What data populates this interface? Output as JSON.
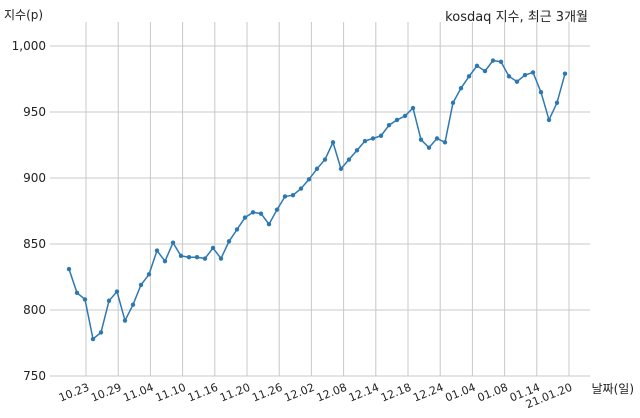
{
  "chart_data": {
    "type": "line",
    "title": "kosdaq 지수, 최근 3개월",
    "xlabel": "날짜(일)",
    "ylabel": "지수(p)",
    "y_ticks": [
      "750",
      "800",
      "850",
      "900",
      "950",
      "1,000"
    ],
    "x_ticks": [
      "10.23",
      "10.29",
      "11.04",
      "11.10",
      "11.16",
      "11.20",
      "11.26",
      "12.02",
      "12.08",
      "12.14",
      "12.18",
      "12.24",
      "01.04",
      "01.08",
      "01.14",
      "21.01.20"
    ],
    "ylim": [
      750,
      1010
    ],
    "grid": true,
    "line_color": "#2e78b2",
    "series": [
      {
        "values": [
          831,
          813,
          808,
          778,
          783,
          807,
          814,
          792,
          804,
          819,
          827,
          845,
          837,
          851,
          841,
          840,
          840,
          839,
          847,
          839,
          852,
          861,
          870,
          874,
          873,
          865,
          876,
          886,
          887,
          892,
          899,
          907,
          914,
          927,
          907,
          914,
          921,
          928,
          930,
          932,
          940,
          944,
          947,
          953,
          929,
          923,
          930,
          927,
          957,
          968,
          977,
          985,
          981,
          989,
          988,
          977,
          973,
          978,
          980,
          965,
          944,
          957,
          979
        ]
      }
    ]
  }
}
